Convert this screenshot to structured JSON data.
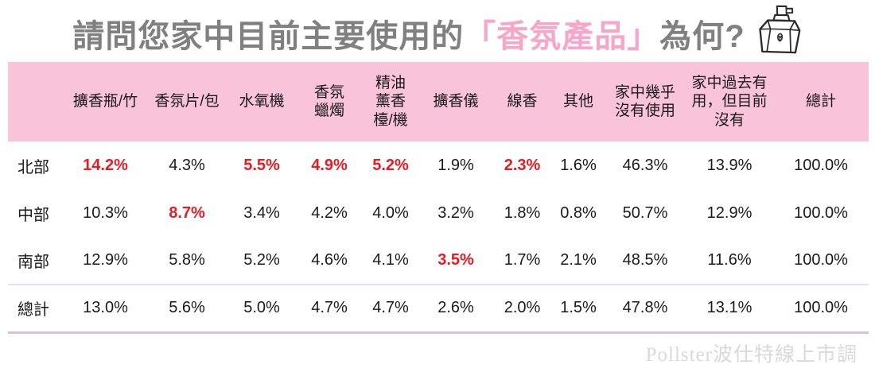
{
  "title": {
    "prefix": "請問您家中目前主要使用的",
    "highlight": "「香氛產品」",
    "suffix": "為何?"
  },
  "colors": {
    "title_gray": "#808080",
    "title_pink": "#f7a6ca",
    "header_bg": "#f9c3da",
    "highlight_red": "#e81b22",
    "text_black": "#1a1a1a",
    "separator_pink": "#f0dbe9",
    "bottom_border_pink": "#debfd5",
    "watermark_gray": "#d9d9d9"
  },
  "table": {
    "columns": [
      "擴香瓶/竹",
      "香氛片/包",
      "水氧機",
      "香氛\n蠟燭",
      "精油\n薰香\n檯/機",
      "擴香儀",
      "線香",
      "其他",
      "家中幾乎\n沒有使用",
      "家中過去有\n用，但目前\n沒有",
      "總計"
    ],
    "rows": [
      {
        "label": "北部",
        "values": [
          "14.2%",
          "4.3%",
          "5.5%",
          "4.9%",
          "5.2%",
          "1.9%",
          "2.3%",
          "1.6%",
          "46.3%",
          "13.9%",
          "100.0%"
        ],
        "highlight": [
          0,
          2,
          3,
          4,
          6
        ],
        "is_total": false
      },
      {
        "label": "中部",
        "values": [
          "10.3%",
          "8.7%",
          "3.4%",
          "4.2%",
          "4.0%",
          "3.2%",
          "1.8%",
          "0.8%",
          "50.7%",
          "12.9%",
          "100.0%"
        ],
        "highlight": [
          1
        ],
        "is_total": false
      },
      {
        "label": "南部",
        "values": [
          "12.9%",
          "5.8%",
          "5.2%",
          "4.6%",
          "4.1%",
          "3.5%",
          "1.7%",
          "2.1%",
          "48.5%",
          "11.6%",
          "100.0%"
        ],
        "highlight": [
          5
        ],
        "is_total": false
      },
      {
        "label": "總計",
        "values": [
          "13.0%",
          "5.6%",
          "5.0%",
          "4.7%",
          "4.7%",
          "2.6%",
          "2.0%",
          "1.5%",
          "47.8%",
          "13.1%",
          "100.0%"
        ],
        "highlight": [],
        "is_total": true
      }
    ]
  },
  "watermark": "Pollster波仕特線上市調",
  "chart_data": {
    "type": "table",
    "title": "請問您家中目前主要使用的「香氛產品」為何?",
    "unit": "%",
    "columns": [
      "",
      "擴香瓶/竹",
      "香氛片/包",
      "水氧機",
      "香氛蠟燭",
      "精油薰香檯/機",
      "擴香儀",
      "線香",
      "其他",
      "家中幾乎沒有使用",
      "家中過去有用，但目前沒有",
      "總計"
    ],
    "rows": [
      [
        "北部",
        14.2,
        4.3,
        5.5,
        4.9,
        5.2,
        1.9,
        2.3,
        1.6,
        46.3,
        13.9,
        100.0
      ],
      [
        "中部",
        10.3,
        8.7,
        3.4,
        4.2,
        4.0,
        3.2,
        1.8,
        0.8,
        50.7,
        12.9,
        100.0
      ],
      [
        "南部",
        12.9,
        5.8,
        5.2,
        4.6,
        4.1,
        3.5,
        1.7,
        2.1,
        48.5,
        11.6,
        100.0
      ],
      [
        "總計",
        13.0,
        5.6,
        5.0,
        4.7,
        4.7,
        2.6,
        2.0,
        1.5,
        47.8,
        13.1,
        100.0
      ]
    ],
    "highlighted_cells": [
      {
        "row": "北部",
        "column": "擴香瓶/竹",
        "value": 14.2
      },
      {
        "row": "北部",
        "column": "水氧機",
        "value": 5.5
      },
      {
        "row": "北部",
        "column": "香氛蠟燭",
        "value": 4.9
      },
      {
        "row": "北部",
        "column": "精油薰香檯/機",
        "value": 5.2
      },
      {
        "row": "北部",
        "column": "線香",
        "value": 2.3
      },
      {
        "row": "中部",
        "column": "香氛片/包",
        "value": 8.7
      },
      {
        "row": "南部",
        "column": "擴香儀",
        "value": 3.5
      }
    ]
  }
}
